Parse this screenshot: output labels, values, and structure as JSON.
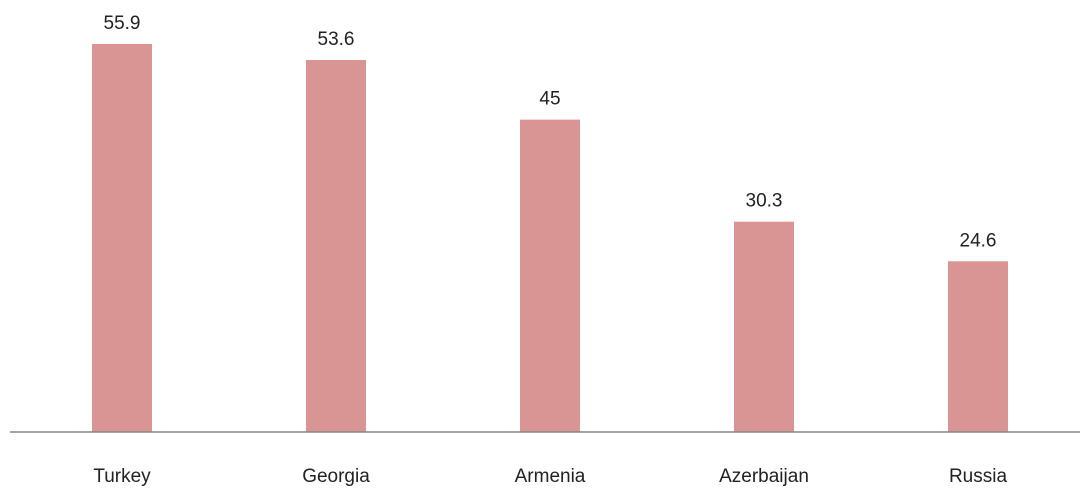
{
  "chart_data": {
    "type": "bar",
    "title": "",
    "xlabel": "",
    "ylabel": "",
    "categories": [
      "Turkey",
      "Georgia",
      "Armenia",
      "Azerbaijan",
      "Russia"
    ],
    "values": [
      55.9,
      53.6,
      45,
      30.3,
      24.6
    ],
    "data_labels": [
      "55.9",
      "53.6",
      "45",
      "30.3",
      "24.6"
    ],
    "ylim": [
      0,
      60
    ],
    "grid": false,
    "legend": "none",
    "colors": {
      "bar": "#d99594",
      "axis": "#868686"
    }
  }
}
